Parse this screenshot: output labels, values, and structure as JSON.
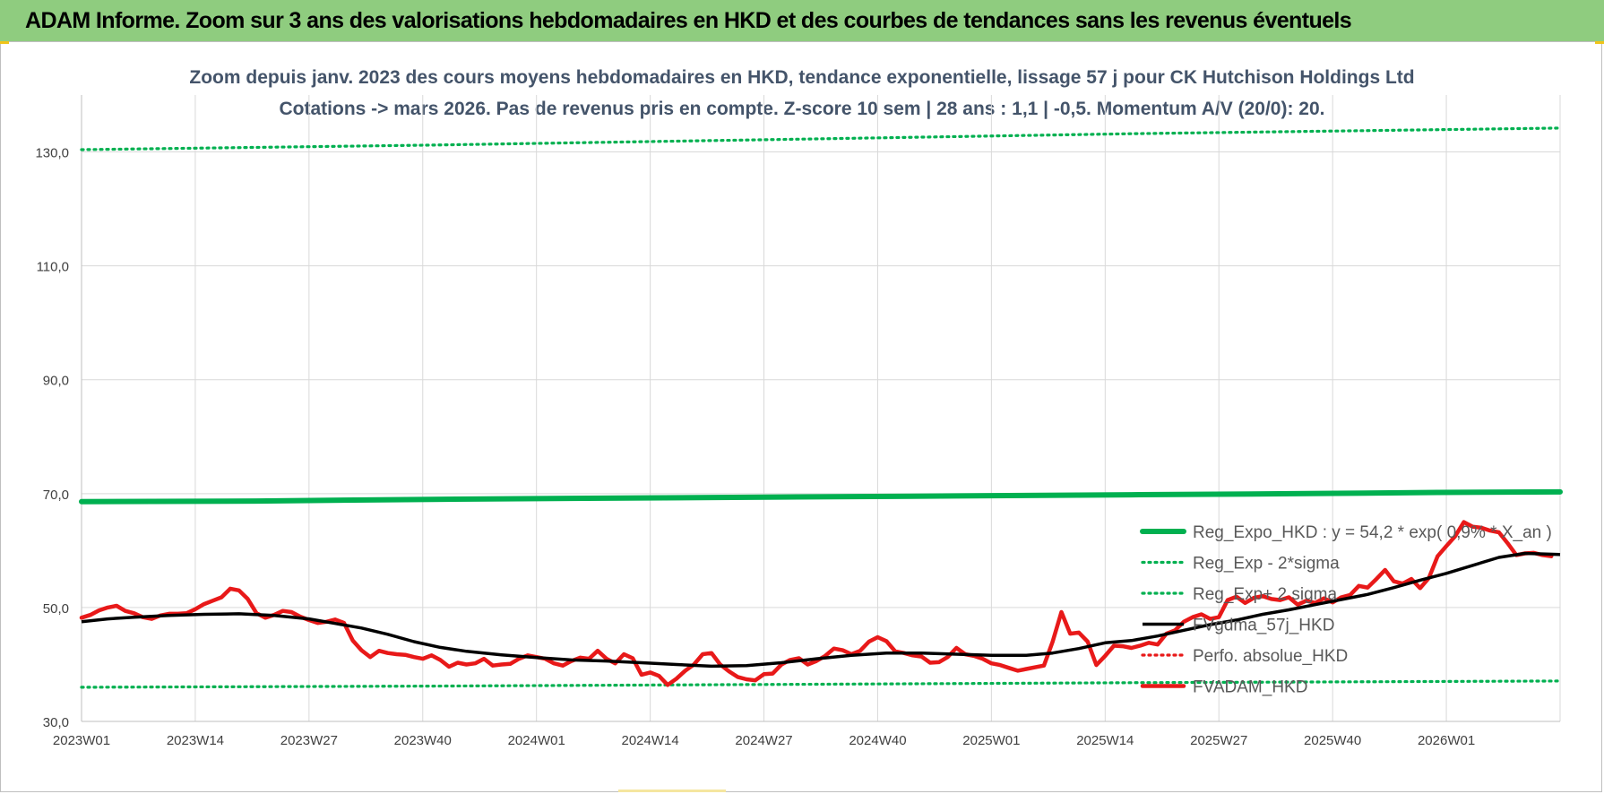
{
  "banner": {
    "title": "ADAM Informe. Zoom sur 3 ans des valorisations hebdomadaires en HKD et des courbes de tendances sans les revenus éventuels"
  },
  "colors": {
    "banner_bg": "#8fcc7f",
    "subtitle": "#44546a",
    "reg_expo": "#00b050",
    "fvgdma": "#000000",
    "fvadam": "#e81919",
    "perfo": "#e81919"
  },
  "chart_data": {
    "type": "line",
    "title_lines": [
      "Zoom depuis janv. 2023 des cours moyens hebdomadaires en HKD, tendance exponentielle, lissage 57 j pour CK Hutchison Holdings Ltd",
      "Cotations -> mars 2026. Pas de revenus pris en compte. Z-score 10 sem | 28 ans : 1,1 | -0,5. Momentum A/V (20/0): 20."
    ],
    "xlabel": "",
    "ylabel": "",
    "ylim": [
      30,
      140
    ],
    "y_ticks": [
      "30,0",
      "50,0",
      "70,0",
      "90,0",
      "110,0",
      "130,0"
    ],
    "y_tick_values": [
      30,
      50,
      70,
      90,
      110,
      130
    ],
    "x_ticks": [
      "2023W01",
      "2023W14",
      "2023W27",
      "2023W40",
      "2024W01",
      "2024W14",
      "2024W27",
      "2024W40",
      "2025W01",
      "2025W14",
      "2025W27",
      "2025W40",
      "2026W01"
    ],
    "x_tick_weeks": [
      0,
      13,
      26,
      39,
      52,
      65,
      78,
      91,
      104,
      117,
      130,
      143,
      156
    ],
    "x_range_weeks": [
      0,
      169
    ],
    "grid": "vertical and horizontal",
    "legend_placement": "bottom-right",
    "series": [
      {
        "name": "Reg_Expo_HKD : y = 54,2 * exp( 0,9% * X_an )",
        "style": "solid-thick",
        "color": "#00b050",
        "points": [
          [
            0,
            68.6
          ],
          [
            20,
            68.7
          ],
          [
            40,
            69.0
          ],
          [
            60,
            69.2
          ],
          [
            80,
            69.4
          ],
          [
            100,
            69.6
          ],
          [
            120,
            69.8
          ],
          [
            140,
            70.0
          ],
          [
            155,
            70.2
          ],
          [
            169,
            70.3
          ]
        ]
      },
      {
        "name": "Reg_Exp - 2*sigma",
        "style": "dotted",
        "color": "#00b050",
        "points": [
          [
            0,
            36.0
          ],
          [
            40,
            36.2
          ],
          [
            80,
            36.5
          ],
          [
            120,
            36.8
          ],
          [
            169,
            37.1
          ]
        ]
      },
      {
        "name": "Reg_Exp+ 2 sigma",
        "style": "dotted",
        "color": "#00b050",
        "points": [
          [
            0,
            130.4
          ],
          [
            40,
            131.2
          ],
          [
            80,
            132.2
          ],
          [
            120,
            133.2
          ],
          [
            169,
            134.2
          ]
        ]
      },
      {
        "name": "FVgdma_57j_HKD",
        "style": "solid",
        "color": "#000000",
        "points": [
          [
            0,
            47.5
          ],
          [
            3,
            48.0
          ],
          [
            6,
            48.3
          ],
          [
            10,
            48.6
          ],
          [
            14,
            48.8
          ],
          [
            18,
            48.9
          ],
          [
            22,
            48.6
          ],
          [
            26,
            48.0
          ],
          [
            29,
            47.2
          ],
          [
            32,
            46.4
          ],
          [
            35,
            45.3
          ],
          [
            38,
            44.0
          ],
          [
            41,
            43.0
          ],
          [
            44,
            42.3
          ],
          [
            48,
            41.7
          ],
          [
            52,
            41.2
          ],
          [
            56,
            40.8
          ],
          [
            60,
            40.6
          ],
          [
            64,
            40.3
          ],
          [
            68,
            40.0
          ],
          [
            72,
            39.7
          ],
          [
            76,
            39.8
          ],
          [
            80,
            40.3
          ],
          [
            84,
            41.0
          ],
          [
            88,
            41.6
          ],
          [
            92,
            42.0
          ],
          [
            96,
            42.0
          ],
          [
            100,
            41.8
          ],
          [
            104,
            41.6
          ],
          [
            108,
            41.6
          ],
          [
            111,
            42.0
          ],
          [
            114,
            42.8
          ],
          [
            117,
            43.8
          ],
          [
            120,
            44.2
          ],
          [
            123,
            45.0
          ],
          [
            126,
            46.0
          ],
          [
            129,
            47.0
          ],
          [
            132,
            47.8
          ],
          [
            135,
            48.8
          ],
          [
            138,
            49.6
          ],
          [
            141,
            50.5
          ],
          [
            144,
            51.4
          ],
          [
            147,
            52.3
          ],
          [
            150,
            53.5
          ],
          [
            153,
            54.8
          ],
          [
            156,
            56.0
          ],
          [
            159,
            57.4
          ],
          [
            162,
            58.8
          ],
          [
            165,
            59.5
          ],
          [
            169,
            59.3
          ]
        ]
      },
      {
        "name": "Perfo. absolue_HKD",
        "style": "dotted",
        "color": "#e81919",
        "points": []
      },
      {
        "name": "FVADAM_HKD",
        "style": "solid-thick",
        "color": "#e81919",
        "points": [
          [
            0,
            48.2
          ],
          [
            1,
            48.7
          ],
          [
            2,
            49.5
          ],
          [
            3,
            50.0
          ],
          [
            4,
            50.3
          ],
          [
            5,
            49.4
          ],
          [
            6,
            49.0
          ],
          [
            7,
            48.3
          ],
          [
            8,
            48.0
          ],
          [
            9,
            48.6
          ],
          [
            10,
            48.9
          ],
          [
            11,
            48.9
          ],
          [
            12,
            49.0
          ],
          [
            13,
            49.7
          ],
          [
            14,
            50.6
          ],
          [
            15,
            51.2
          ],
          [
            16,
            51.8
          ],
          [
            17,
            53.3
          ],
          [
            18,
            53.0
          ],
          [
            19,
            51.5
          ],
          [
            20,
            49.0
          ],
          [
            21,
            48.2
          ],
          [
            22,
            48.7
          ],
          [
            23,
            49.4
          ],
          [
            24,
            49.2
          ],
          [
            25,
            48.4
          ],
          [
            26,
            47.8
          ],
          [
            27,
            47.3
          ],
          [
            28,
            47.5
          ],
          [
            29,
            47.9
          ],
          [
            30,
            47.3
          ],
          [
            31,
            44.2
          ],
          [
            32,
            42.5
          ],
          [
            33,
            41.3
          ],
          [
            34,
            42.4
          ],
          [
            35,
            42.0
          ],
          [
            36,
            41.8
          ],
          [
            37,
            41.7
          ],
          [
            38,
            41.3
          ],
          [
            39,
            41.0
          ],
          [
            40,
            41.6
          ],
          [
            41,
            40.8
          ],
          [
            42,
            39.6
          ],
          [
            43,
            40.3
          ],
          [
            44,
            40.0
          ],
          [
            45,
            40.2
          ],
          [
            46,
            41.0
          ],
          [
            47,
            39.8
          ],
          [
            48,
            40.0
          ],
          [
            49,
            40.1
          ],
          [
            50,
            41.0
          ],
          [
            51,
            41.6
          ],
          [
            52,
            41.3
          ],
          [
            53,
            41.0
          ],
          [
            54,
            40.2
          ],
          [
            55,
            39.8
          ],
          [
            56,
            40.6
          ],
          [
            57,
            41.2
          ],
          [
            58,
            41.0
          ],
          [
            59,
            42.4
          ],
          [
            60,
            41.0
          ],
          [
            61,
            40.2
          ],
          [
            62,
            41.8
          ],
          [
            63,
            41.1
          ],
          [
            64,
            38.2
          ],
          [
            65,
            38.6
          ],
          [
            66,
            38.0
          ],
          [
            67,
            36.4
          ],
          [
            68,
            37.5
          ],
          [
            69,
            38.9
          ],
          [
            70,
            40.0
          ],
          [
            71,
            41.8
          ],
          [
            72,
            42.0
          ],
          [
            73,
            40.0
          ],
          [
            74,
            38.8
          ],
          [
            75,
            37.8
          ],
          [
            76,
            37.4
          ],
          [
            77,
            37.2
          ],
          [
            78,
            38.3
          ],
          [
            79,
            38.4
          ],
          [
            80,
            40.0
          ],
          [
            81,
            40.8
          ],
          [
            82,
            41.1
          ],
          [
            83,
            40.0
          ],
          [
            84,
            40.6
          ],
          [
            85,
            41.5
          ],
          [
            86,
            42.8
          ],
          [
            87,
            42.5
          ],
          [
            88,
            41.8
          ],
          [
            89,
            42.4
          ],
          [
            90,
            44.0
          ],
          [
            91,
            44.8
          ],
          [
            92,
            44.1
          ],
          [
            93,
            42.3
          ],
          [
            94,
            42.0
          ],
          [
            95,
            41.6
          ],
          [
            96,
            41.4
          ],
          [
            97,
            40.3
          ],
          [
            98,
            40.4
          ],
          [
            99,
            41.3
          ],
          [
            100,
            42.9
          ],
          [
            101,
            41.8
          ],
          [
            102,
            41.5
          ],
          [
            103,
            41.0
          ],
          [
            104,
            40.2
          ],
          [
            105,
            39.9
          ],
          [
            106,
            39.4
          ],
          [
            107,
            38.9
          ],
          [
            108,
            39.2
          ],
          [
            109,
            39.5
          ],
          [
            110,
            39.8
          ],
          [
            111,
            44.0
          ],
          [
            112,
            49.2
          ],
          [
            113,
            45.4
          ],
          [
            114,
            45.6
          ],
          [
            115,
            44.0
          ],
          [
            116,
            39.9
          ],
          [
            117,
            41.5
          ],
          [
            118,
            43.3
          ],
          [
            119,
            43.2
          ],
          [
            120,
            42.9
          ],
          [
            121,
            43.3
          ],
          [
            122,
            43.8
          ],
          [
            123,
            43.5
          ],
          [
            124,
            45.4
          ],
          [
            125,
            46.0
          ],
          [
            126,
            47.5
          ],
          [
            127,
            48.3
          ],
          [
            128,
            48.8
          ],
          [
            129,
            48.0
          ],
          [
            130,
            48.3
          ],
          [
            131,
            51.3
          ],
          [
            132,
            51.9
          ],
          [
            133,
            50.8
          ],
          [
            134,
            51.7
          ],
          [
            135,
            52.0
          ],
          [
            136,
            51.5
          ],
          [
            137,
            51.3
          ],
          [
            138,
            51.8
          ],
          [
            139,
            50.5
          ],
          [
            140,
            51.2
          ],
          [
            141,
            50.8
          ],
          [
            142,
            51.6
          ],
          [
            143,
            50.9
          ],
          [
            144,
            51.8
          ],
          [
            145,
            52.2
          ],
          [
            146,
            53.8
          ],
          [
            147,
            53.5
          ],
          [
            148,
            55.0
          ],
          [
            149,
            56.6
          ],
          [
            150,
            54.6
          ],
          [
            151,
            54.2
          ],
          [
            152,
            55.0
          ],
          [
            153,
            53.4
          ],
          [
            154,
            55.2
          ],
          [
            155,
            59.0
          ],
          [
            156,
            60.8
          ],
          [
            157,
            62.5
          ],
          [
            158,
            65.0
          ],
          [
            159,
            64.2
          ],
          [
            160,
            64.0
          ],
          [
            161,
            63.5
          ],
          [
            162,
            63.2
          ],
          [
            163,
            61.3
          ],
          [
            164,
            59.2
          ],
          [
            165,
            59.5
          ],
          [
            166,
            59.6
          ],
          [
            167,
            59.2
          ],
          [
            168,
            59.0
          ]
        ]
      }
    ]
  }
}
